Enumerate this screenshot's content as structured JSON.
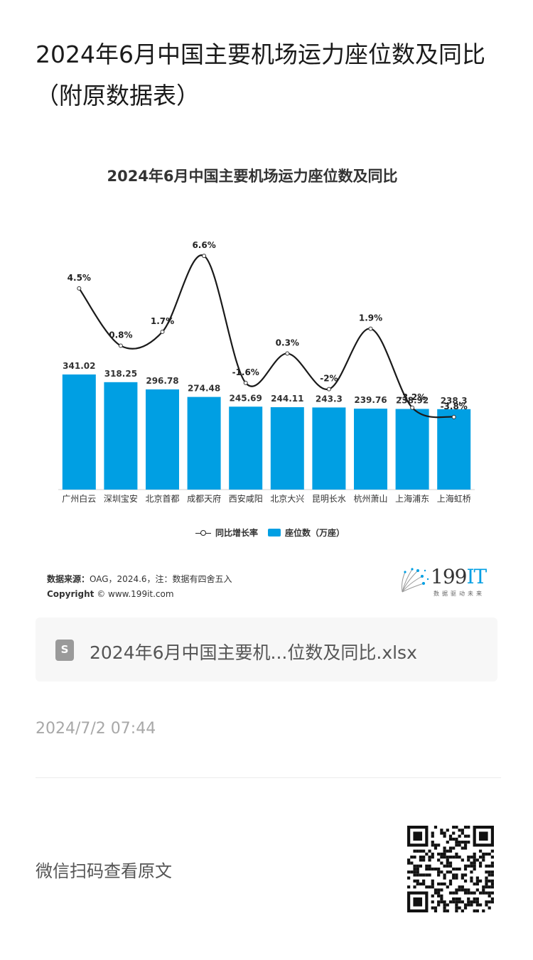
{
  "article": {
    "title": "2024年6月中国主要机场运力座位数及同比（附原数据表）"
  },
  "chart_data": {
    "type": "bar+line",
    "title": "2024年6月中国主要机场运力座位数及同比",
    "categories": [
      "广州白云",
      "深圳宝安",
      "北京首都",
      "成都天府",
      "西安咸阳",
      "北京大兴",
      "昆明长水",
      "杭州萧山",
      "上海浦东",
      "上海虹桥"
    ],
    "series": [
      {
        "name": "座位数（万座）",
        "type": "bar",
        "values": [
          341.02,
          318.25,
          296.78,
          274.48,
          245.69,
          244.11,
          243.3,
          239.76,
          238.92,
          238.3
        ],
        "labels": [
          "341.02",
          "318.25",
          "296.78",
          "274.48",
          "245.69",
          "244.11",
          "243.3",
          "239.76",
          "238.92",
          "238.3"
        ]
      },
      {
        "name": "同比增长率",
        "type": "line",
        "values": [
          4.5,
          0.8,
          1.7,
          6.6,
          -1.6,
          0.3,
          -2,
          1.9,
          -3.2,
          -3.8
        ],
        "labels": [
          "4.5%",
          "0.8%",
          "1.7%",
          "6.6%",
          "-1.6%",
          "0.3%",
          "-2%",
          "1.9%",
          "-3.2%",
          "-3.8%"
        ]
      }
    ],
    "legend": [
      {
        "label": "同比增长率"
      },
      {
        "label": "座位数（万座）"
      }
    ],
    "legend_placement": "bottom",
    "colors": {
      "bar": "#009fe3",
      "line": "#1a1a1a"
    },
    "source_label": "数据来源：",
    "source_text": "OAG，2024.6，注：数据有四舍五入",
    "copyright_label": "Copyright",
    "copyright_text": "© www.199it.com"
  },
  "logo": {
    "main": "199",
    "accent": "IT",
    "tagline": "数据驱动未来"
  },
  "attachment": {
    "icon": "spreadsheet-file-icon",
    "icon_glyph": "S",
    "file_name": "2024年6月中国主要机...位数及同比.xlsx"
  },
  "meta": {
    "date": "2024/7/2 07:44"
  },
  "footer": {
    "qr_hint": "微信扫码查看原文"
  }
}
